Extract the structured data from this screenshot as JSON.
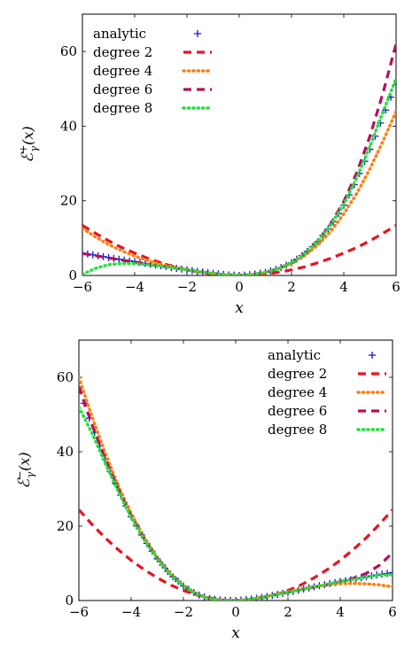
{
  "chart_data": [
    {
      "type": "line",
      "xlabel": "x",
      "ylabel": "ℰ",
      "ylabel_sup": "+",
      "ylabel_sub": "γ",
      "ylabel_arg": "(x)",
      "xlim": [
        -6,
        6
      ],
      "ylim": [
        0,
        70
      ],
      "xticks": [
        "−6",
        "−4",
        "−2",
        "0",
        "2",
        "4",
        "6"
      ],
      "yticks": [
        "0",
        "20",
        "40",
        "60"
      ],
      "grid": false,
      "legend_position": "top-left",
      "x": [
        -6,
        -5.5,
        -5,
        -4.5,
        -4,
        -3.5,
        -3,
        -2.5,
        -2,
        -1.5,
        -1,
        -0.5,
        0,
        0.5,
        1,
        1.5,
        2,
        2.5,
        3,
        3.5,
        4,
        4.5,
        5,
        5.5,
        6
      ],
      "series": [
        {
          "name": "analytic",
          "style": "plus",
          "color": "#1515d4",
          "values": [
            6.0,
            5.4,
            4.8,
            4.2,
            3.7,
            3.1,
            2.6,
            2.0,
            1.5,
            1.0,
            0.55,
            0.2,
            0.0,
            0.25,
            0.8,
            1.8,
            3.4,
            5.8,
            9.0,
            13.3,
            18.8,
            25.7,
            33.8,
            42.6,
            51.2
          ]
        },
        {
          "name": "degree 2",
          "style": "dashed",
          "color": "#e8141e",
          "values": [
            13.4,
            11.3,
            9.3,
            7.5,
            6.0,
            4.6,
            3.4,
            2.3,
            1.5,
            0.84,
            0.37,
            0.09,
            0.0,
            0.09,
            0.37,
            0.84,
            1.5,
            2.3,
            3.4,
            4.6,
            6.0,
            7.5,
            9.3,
            11.3,
            13.4
          ]
        },
        {
          "name": "degree 4",
          "style": "dotted",
          "color": "#ff7f0e",
          "values": [
            12.6,
            10.3,
            8.3,
            6.6,
            5.2,
            4.0,
            3.0,
            2.2,
            1.5,
            0.9,
            0.45,
            0.15,
            0.0,
            0.25,
            0.8,
            1.8,
            3.2,
            5.3,
            8.1,
            11.8,
            16.5,
            22.0,
            28.6,
            36.0,
            44.0
          ]
        },
        {
          "name": "degree 6",
          "style": "dashed",
          "color": "#b5105e",
          "values": [
            5.9,
            5.3,
            4.7,
            4.1,
            3.6,
            3.0,
            2.5,
            2.0,
            1.5,
            1.0,
            0.55,
            0.2,
            0.0,
            0.25,
            0.8,
            1.8,
            3.4,
            5.8,
            9.2,
            13.8,
            19.8,
            27.6,
            37.3,
            48.9,
            62.0
          ]
        },
        {
          "name": "degree 8",
          "style": "dotted",
          "color": "#22e03a",
          "values": [
            0.3,
            1.9,
            2.9,
            3.2,
            3.2,
            2.9,
            2.5,
            2.0,
            1.5,
            1.0,
            0.55,
            0.2,
            0.0,
            0.25,
            0.8,
            1.8,
            3.4,
            5.8,
            9.1,
            13.5,
            19.1,
            26.2,
            34.6,
            43.8,
            52.8
          ]
        }
      ]
    },
    {
      "type": "line",
      "xlabel": "x",
      "ylabel": "ℰ",
      "ylabel_sup": "−",
      "ylabel_sub": "γ",
      "ylabel_arg": "(x)",
      "xlim": [
        -6,
        6
      ],
      "ylim": [
        0,
        70
      ],
      "xticks": [
        "−6",
        "−4",
        "−2",
        "0",
        "2",
        "4",
        "6"
      ],
      "yticks": [
        "0",
        "20",
        "40",
        "60"
      ],
      "grid": false,
      "legend_position": "top-right",
      "x": [
        -6,
        -5.5,
        -5,
        -4.5,
        -4,
        -3.5,
        -3,
        -2.5,
        -2,
        -1.5,
        -1,
        -0.5,
        0,
        0.5,
        1,
        1.5,
        2,
        2.5,
        3,
        3.5,
        4,
        4.5,
        5,
        5.5,
        6
      ],
      "series": [
        {
          "name": "analytic",
          "style": "plus",
          "color": "#1515d4",
          "values": [
            57.0,
            47.0,
            38.0,
            29.8,
            22.5,
            16.4,
            11.2,
            7.0,
            3.9,
            1.7,
            0.5,
            0.05,
            0.0,
            0.3,
            0.8,
            1.5,
            2.2,
            2.9,
            3.7,
            4.4,
            5.1,
            5.7,
            6.4,
            7.0,
            7.5
          ]
        },
        {
          "name": "degree 2",
          "style": "dashed",
          "color": "#e8141e",
          "values": [
            24.4,
            20.5,
            16.9,
            13.7,
            10.8,
            8.3,
            6.1,
            4.2,
            2.7,
            1.5,
            0.68,
            0.17,
            0.0,
            0.17,
            0.68,
            1.5,
            2.7,
            4.2,
            6.1,
            8.3,
            10.8,
            13.7,
            16.9,
            20.5,
            24.4
          ]
        },
        {
          "name": "degree 4",
          "style": "dotted",
          "color": "#ff7f0e",
          "values": [
            60.0,
            49.5,
            39.8,
            31.0,
            23.4,
            17.0,
            11.6,
            7.2,
            4.0,
            1.8,
            0.5,
            0.05,
            0.0,
            0.3,
            0.9,
            1.6,
            2.4,
            3.1,
            3.7,
            4.2,
            4.5,
            4.6,
            4.5,
            4.2,
            3.7
          ]
        },
        {
          "name": "degree 6",
          "style": "dashed",
          "color": "#b5105e",
          "values": [
            57.5,
            47.3,
            38.2,
            30.0,
            22.7,
            16.5,
            11.3,
            7.1,
            3.9,
            1.7,
            0.5,
            0.05,
            0.0,
            0.3,
            0.8,
            1.5,
            2.2,
            2.9,
            3.6,
            4.3,
            5.1,
            6.0,
            7.3,
            9.5,
            12.8
          ]
        },
        {
          "name": "degree 8",
          "style": "dotted",
          "color": "#22e03a",
          "values": [
            52.0,
            45.0,
            37.0,
            29.4,
            22.3,
            16.3,
            11.2,
            7.0,
            3.9,
            1.7,
            0.5,
            0.05,
            0.0,
            0.3,
            0.8,
            1.5,
            2.2,
            2.9,
            3.7,
            4.4,
            5.1,
            5.7,
            6.3,
            6.8,
            7.0
          ]
        }
      ]
    }
  ]
}
